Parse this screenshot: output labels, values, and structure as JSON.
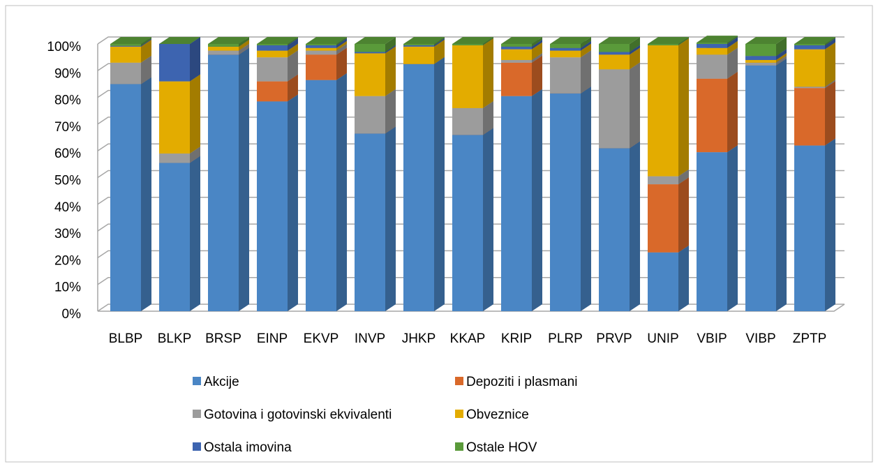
{
  "chart_data": {
    "type": "bar",
    "stacked": true,
    "three_d": true,
    "categories": [
      "BLBP",
      "BLKP",
      "BRSP",
      "EINP",
      "EKVP",
      "INVP",
      "JHKP",
      "KKAP",
      "KRIP",
      "PLRP",
      "PRVP",
      "UNIP",
      "VBIP",
      "VIBP",
      "ZPTP"
    ],
    "series": [
      {
        "name": "Akcije",
        "color": "#4a86c5",
        "values": [
          85,
          55.5,
          96,
          78.5,
          86.5,
          66.5,
          92.5,
          66,
          80.5,
          81.5,
          61,
          22,
          59.5,
          92,
          62
        ]
      },
      {
        "name": "Depoziti i plasmani",
        "color": "#d9692a",
        "values": [
          0,
          0,
          0,
          7.5,
          9.5,
          0,
          0,
          0,
          12.5,
          0,
          0,
          25.5,
          27.5,
          0,
          21.5
        ]
      },
      {
        "name": "Gotovina i gotovinski ekvivalenti",
        "color": "#9c9c9c",
        "values": [
          8,
          3.5,
          1.5,
          9,
          1.5,
          14,
          0,
          10,
          1,
          13.5,
          29.5,
          3,
          9,
          1,
          0.5
        ]
      },
      {
        "name": "Obveznice",
        "color": "#e3ac00",
        "values": [
          6,
          27,
          1.5,
          2.5,
          1,
          16,
          6.5,
          23.5,
          4,
          2.5,
          5.5,
          49,
          2.5,
          1,
          14
        ]
      },
      {
        "name": "Ostala imovina",
        "color": "#3d64b0",
        "values": [
          0.3,
          14,
          0,
          2,
          1,
          0.5,
          0.5,
          0,
          1,
          1,
          1,
          0,
          1.5,
          1.5,
          1.5
        ]
      },
      {
        "name": "Ostale HOV",
        "color": "#5a9a3a",
        "values": [
          0.7,
          0,
          1,
          0.5,
          0.5,
          3,
          0.5,
          0.5,
          1,
          1.5,
          3,
          0.5,
          0.5,
          4.5,
          0.5
        ]
      }
    ],
    "ylim": [
      0,
      100
    ],
    "yticks": [
      {
        "value": 0,
        "label": "0%"
      },
      {
        "value": 10,
        "label": "10%"
      },
      {
        "value": 20,
        "label": "20%"
      },
      {
        "value": 30,
        "label": "30%"
      },
      {
        "value": 40,
        "label": "40%"
      },
      {
        "value": 50,
        "label": "50%"
      },
      {
        "value": 60,
        "label": "60%"
      },
      {
        "value": 70,
        "label": "70%"
      },
      {
        "value": 80,
        "label": "80%"
      },
      {
        "value": 90,
        "label": "90%"
      },
      {
        "value": 100,
        "label": "100%"
      }
    ],
    "grid": true,
    "legend": "bottom"
  }
}
